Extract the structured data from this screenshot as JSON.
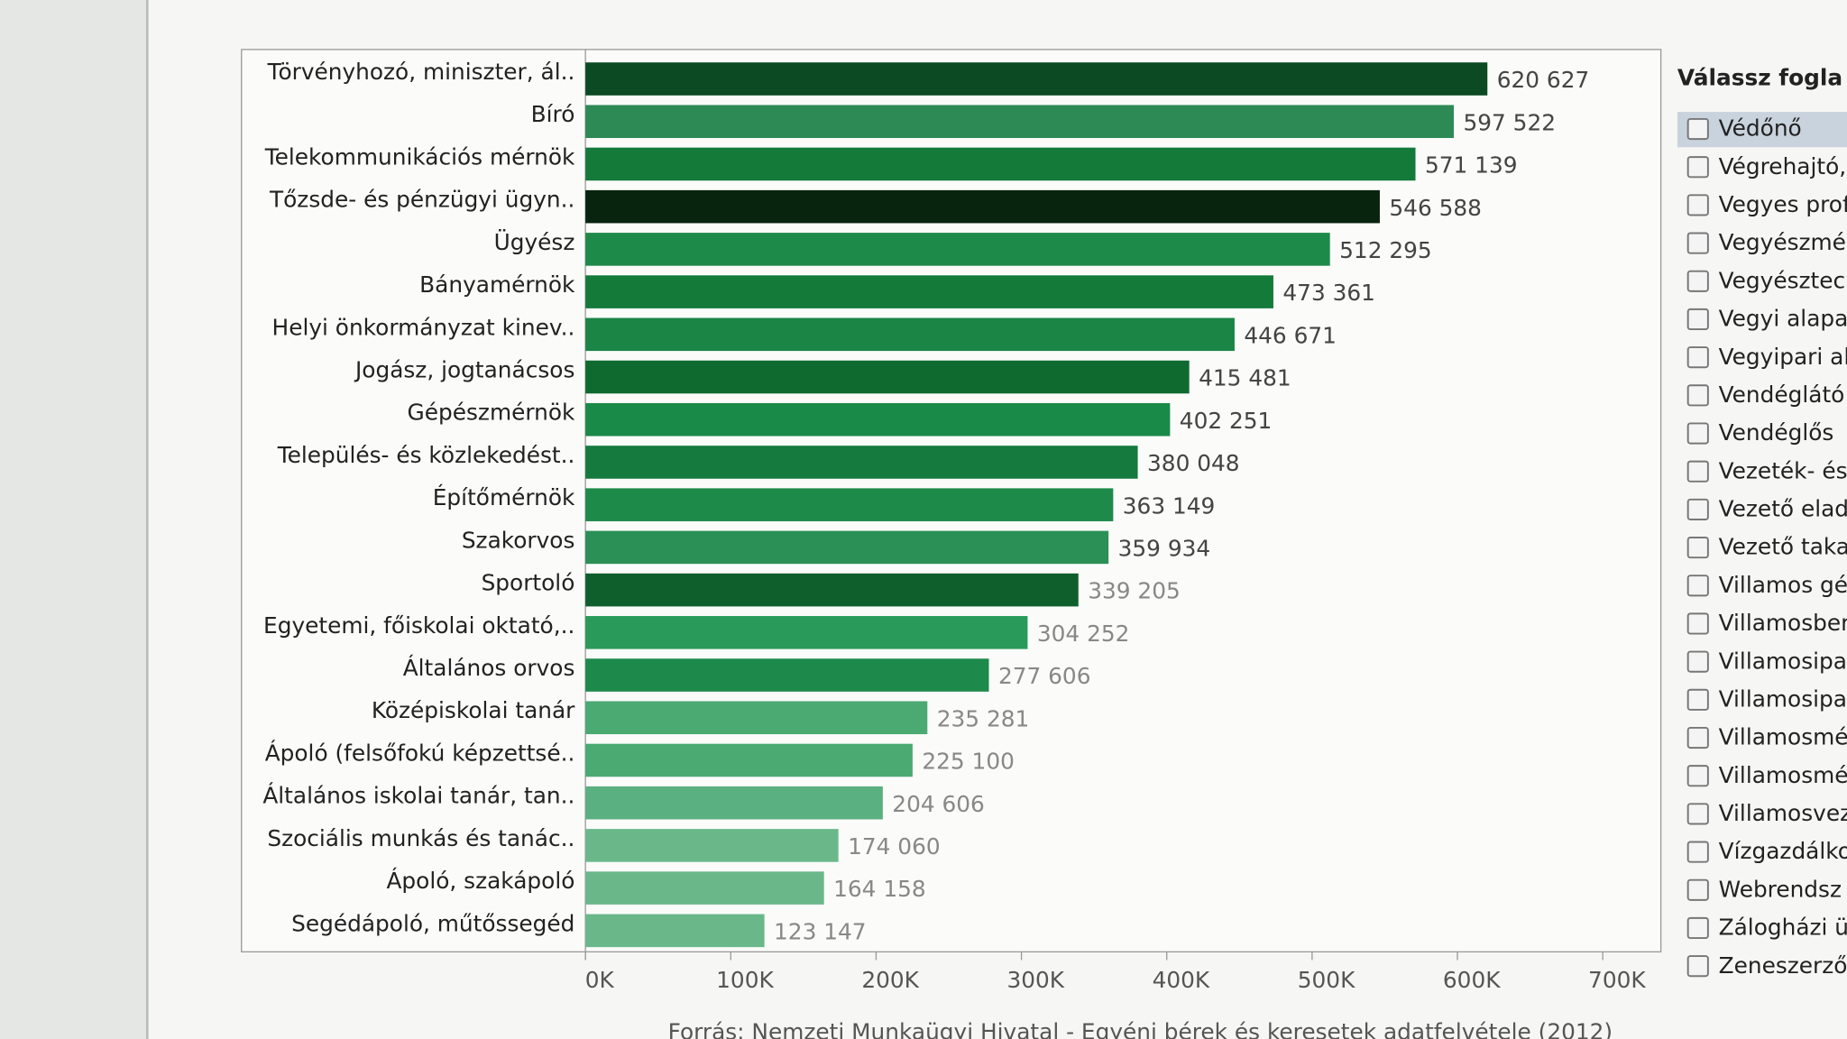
{
  "chart_data": {
    "type": "bar",
    "orientation": "horizontal",
    "categories": [
      "Törvényhozó, miniszter, ál..",
      "Bíró",
      "Telekommunikációs mérnök",
      "Tőzsde- és pénzügyi ügyn..",
      "Ügyész",
      "Bányamérnök",
      "Helyi önkormányzat kinev..",
      "Jogász, jogtanácsos",
      "Gépészmérnök",
      "Település- és közlekedést..",
      "Építőmérnök",
      "Szakorvos",
      "Sportoló",
      "Egyetemi, főiskolai oktató,..",
      "Általános orvos",
      "Középiskolai tanár",
      "Ápoló (felsőfokú képzettsé..",
      "Általános iskolai tanár, tan..",
      "Szociális munkás és tanác..",
      "Ápoló, szakápoló",
      "Segédápoló, műtőssegéd"
    ],
    "values": [
      620627,
      597522,
      571139,
      546588,
      512295,
      473361,
      446671,
      415481,
      402251,
      380048,
      363149,
      359934,
      339205,
      304252,
      277606,
      235281,
      225100,
      204606,
      174060,
      164158,
      123147
    ],
    "value_labels": [
      "620 627",
      "597 522",
      "571 139",
      "546 588",
      "512 295",
      "473 361",
      "446 671",
      "415 481",
      "402 251",
      "380 048",
      "363 149",
      "359 934",
      "339 205",
      "304 252",
      "277 606",
      "235 281",
      "225 100",
      "204 606",
      "174 060",
      "164 158",
      "123 147"
    ],
    "colors": [
      "#0b4a22",
      "#2e8a55",
      "#137a3a",
      "#08240f",
      "#1e8a4a",
      "#137a3a",
      "#1a8545",
      "#0f6a30",
      "#1a8a48",
      "#157a3e",
      "#1e8a4a",
      "#2a9055",
      "#0f5f2c",
      "#2a9a5a",
      "#1d8a4c",
      "#4aaa72",
      "#4aaa72",
      "#5ab080",
      "#6ab88a",
      "#6ab88a",
      "#6ab88a"
    ],
    "xlim": [
      0,
      740000
    ],
    "xticks": [
      {
        "value": 0,
        "label": "0K"
      },
      {
        "value": 100000,
        "label": "100K"
      },
      {
        "value": 200000,
        "label": "200K"
      },
      {
        "value": 300000,
        "label": "300K"
      },
      {
        "value": 400000,
        "label": "400K"
      },
      {
        "value": 500000,
        "label": "500K"
      },
      {
        "value": 600000,
        "label": "600K"
      },
      {
        "value": 700000,
        "label": "700K"
      }
    ],
    "source": "Forrás: Nemzeti Munkaügyi Hivatal - Egyéni bérek és keresetek adatfelvétele (2012)"
  },
  "panel": {
    "title": "Válassz fogla",
    "items": [
      "Védőnő",
      "Végrehajtó,",
      "Vegyes prof",
      "Vegyészmé",
      "Vegyésztec",
      "Vegyi alapa",
      "Vegyipari al",
      "Vendéglátó",
      "Vendéglős",
      "Vezeték- és",
      "Vezető elad",
      "Vezető taka",
      "Villamos gé",
      "Villamosber",
      "Villamosipa",
      "Villamosipa",
      "Villamosmé",
      "Villamosmé",
      "Villamosvez",
      "Vízgazdálko",
      "Webrendsz",
      "Zálogházi ü",
      "Zeneszerző,"
    ]
  }
}
